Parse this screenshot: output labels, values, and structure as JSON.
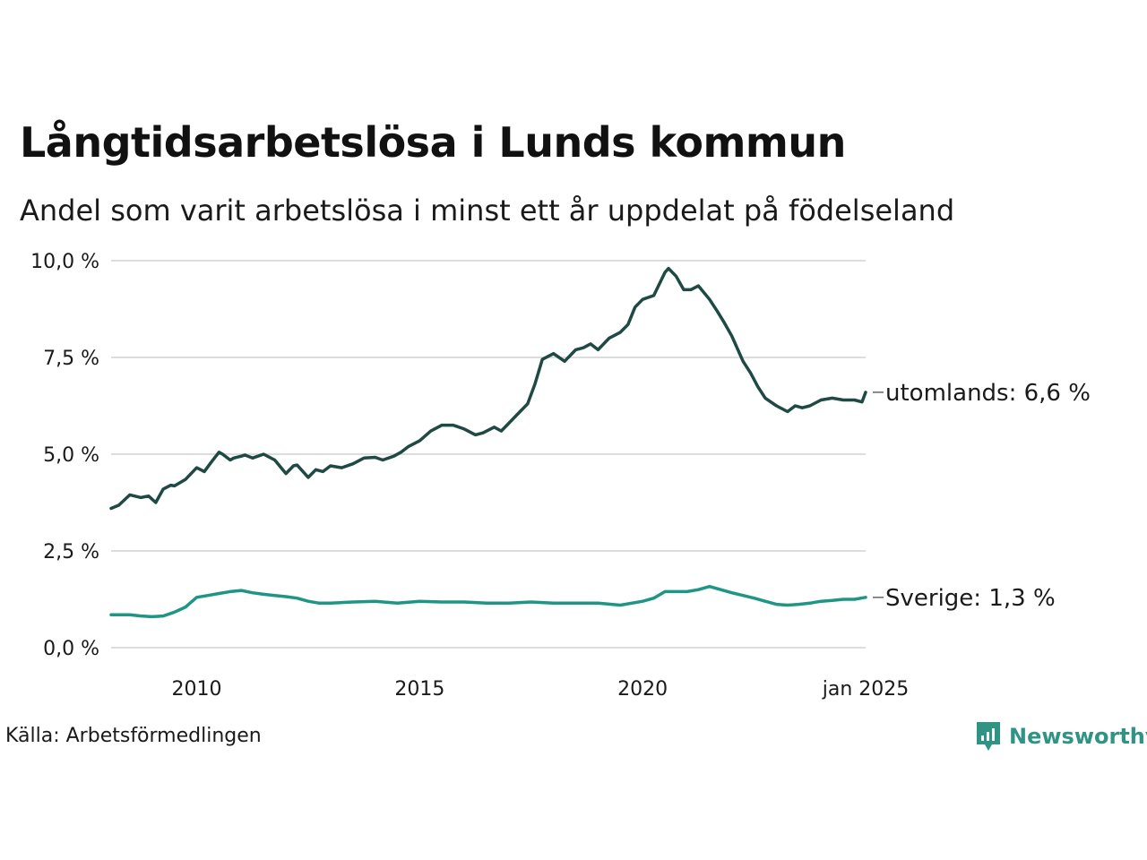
{
  "title": "Långtidsarbetslösa i Lunds kommun",
  "subtitle": "Andel som varit arbetslösa i minst ett år uppdelat på födelseland",
  "source": "Källa: Arbetsförmedlingen",
  "brand": "Newsworthy",
  "colors": {
    "foreign": "#1f4a44",
    "sweden": "#1f9585",
    "grid": "#dddddd",
    "brand": "#2f9484"
  },
  "chart_data": {
    "type": "line",
    "title": "Långtidsarbetslösa i Lunds kommun",
    "subtitle": "Andel som varit arbetslösa i minst ett år uppdelat på födelseland",
    "ylim": [
      0,
      10
    ],
    "xlim": [
      2008.08,
      2025.0
    ],
    "y_ticks": [
      0,
      2.5,
      5,
      7.5,
      10
    ],
    "y_tick_labels": [
      "0,0 %",
      "2,5 %",
      "5,0 %",
      "7,5 %",
      "10,0 %"
    ],
    "x_ticks": [
      2010,
      2015,
      2020,
      2025
    ],
    "x_tick_labels": [
      "2010",
      "2015",
      "2020",
      "jan 2025"
    ],
    "grid": "horizontal",
    "series": [
      {
        "name": "utomlands",
        "label": "utomlands: 6,6 %",
        "x": [
          2008.08,
          2008.25,
          2008.5,
          2008.75,
          2008.92,
          2009.08,
          2009.25,
          2009.42,
          2009.5,
          2009.75,
          2010.0,
          2010.17,
          2010.33,
          2010.5,
          2010.58,
          2010.75,
          2010.83,
          2011.0,
          2011.08,
          2011.25,
          2011.5,
          2011.75,
          2012.0,
          2012.17,
          2012.25,
          2012.5,
          2012.67,
          2012.83,
          2013.0,
          2013.25,
          2013.5,
          2013.75,
          2014.0,
          2014.17,
          2014.42,
          2014.58,
          2014.75,
          2015.0,
          2015.25,
          2015.5,
          2015.75,
          2016.0,
          2016.25,
          2016.42,
          2016.67,
          2016.83,
          2017.0,
          2017.25,
          2017.42,
          2017.58,
          2017.75,
          2018.0,
          2018.25,
          2018.5,
          2018.67,
          2018.83,
          2019.0,
          2019.25,
          2019.5,
          2019.67,
          2019.83,
          2020.0,
          2020.25,
          2020.5,
          2020.58,
          2020.75,
          2020.92,
          2021.08,
          2021.25,
          2021.5,
          2021.67,
          2021.83,
          2022.0,
          2022.25,
          2022.42,
          2022.58,
          2022.75,
          2023.0,
          2023.25,
          2023.42,
          2023.58,
          2023.75,
          2024.0,
          2024.25,
          2024.5,
          2024.75,
          2024.92,
          2025.0
        ],
        "values": [
          3.6,
          3.68,
          3.95,
          3.88,
          3.92,
          3.75,
          4.1,
          4.2,
          4.18,
          4.35,
          4.65,
          4.55,
          4.8,
          5.05,
          5.0,
          4.85,
          4.9,
          4.95,
          4.98,
          4.9,
          5.0,
          4.85,
          4.5,
          4.7,
          4.72,
          4.4,
          4.6,
          4.55,
          4.7,
          4.65,
          4.75,
          4.9,
          4.92,
          4.85,
          4.95,
          5.05,
          5.2,
          5.35,
          5.6,
          5.75,
          5.75,
          5.65,
          5.5,
          5.55,
          5.7,
          5.6,
          5.8,
          6.1,
          6.3,
          6.8,
          7.45,
          7.6,
          7.4,
          7.7,
          7.75,
          7.85,
          7.7,
          8.0,
          8.15,
          8.35,
          8.8,
          9.0,
          9.1,
          9.7,
          9.8,
          9.6,
          9.25,
          9.25,
          9.35,
          9.0,
          8.7,
          8.4,
          8.05,
          7.4,
          7.1,
          6.75,
          6.45,
          6.25,
          6.1,
          6.25,
          6.2,
          6.25,
          6.4,
          6.45,
          6.4,
          6.4,
          6.35,
          6.6
        ]
      },
      {
        "name": "Sverige",
        "label": "Sverige: 1,3 %",
        "x": [
          2008.08,
          2008.5,
          2008.75,
          2009.0,
          2009.25,
          2009.5,
          2009.75,
          2010.0,
          2010.25,
          2010.5,
          2010.75,
          2011.0,
          2011.25,
          2011.5,
          2011.75,
          2012.0,
          2012.25,
          2012.5,
          2012.75,
          2013.0,
          2013.5,
          2014.0,
          2014.5,
          2015.0,
          2015.5,
          2016.0,
          2016.5,
          2017.0,
          2017.5,
          2018.0,
          2018.5,
          2019.0,
          2019.5,
          2020.0,
          2020.25,
          2020.5,
          2020.75,
          2021.0,
          2021.25,
          2021.5,
          2021.75,
          2022.0,
          2022.25,
          2022.5,
          2022.75,
          2023.0,
          2023.25,
          2023.5,
          2023.75,
          2024.0,
          2024.25,
          2024.5,
          2024.75,
          2025.0
        ],
        "values": [
          0.85,
          0.85,
          0.82,
          0.8,
          0.82,
          0.92,
          1.05,
          1.3,
          1.35,
          1.4,
          1.45,
          1.48,
          1.42,
          1.38,
          1.35,
          1.32,
          1.28,
          1.2,
          1.15,
          1.15,
          1.18,
          1.2,
          1.15,
          1.2,
          1.18,
          1.18,
          1.15,
          1.15,
          1.18,
          1.15,
          1.15,
          1.15,
          1.1,
          1.2,
          1.28,
          1.45,
          1.45,
          1.45,
          1.5,
          1.58,
          1.5,
          1.42,
          1.35,
          1.28,
          1.2,
          1.12,
          1.1,
          1.12,
          1.15,
          1.2,
          1.22,
          1.25,
          1.25,
          1.3
        ]
      }
    ]
  }
}
